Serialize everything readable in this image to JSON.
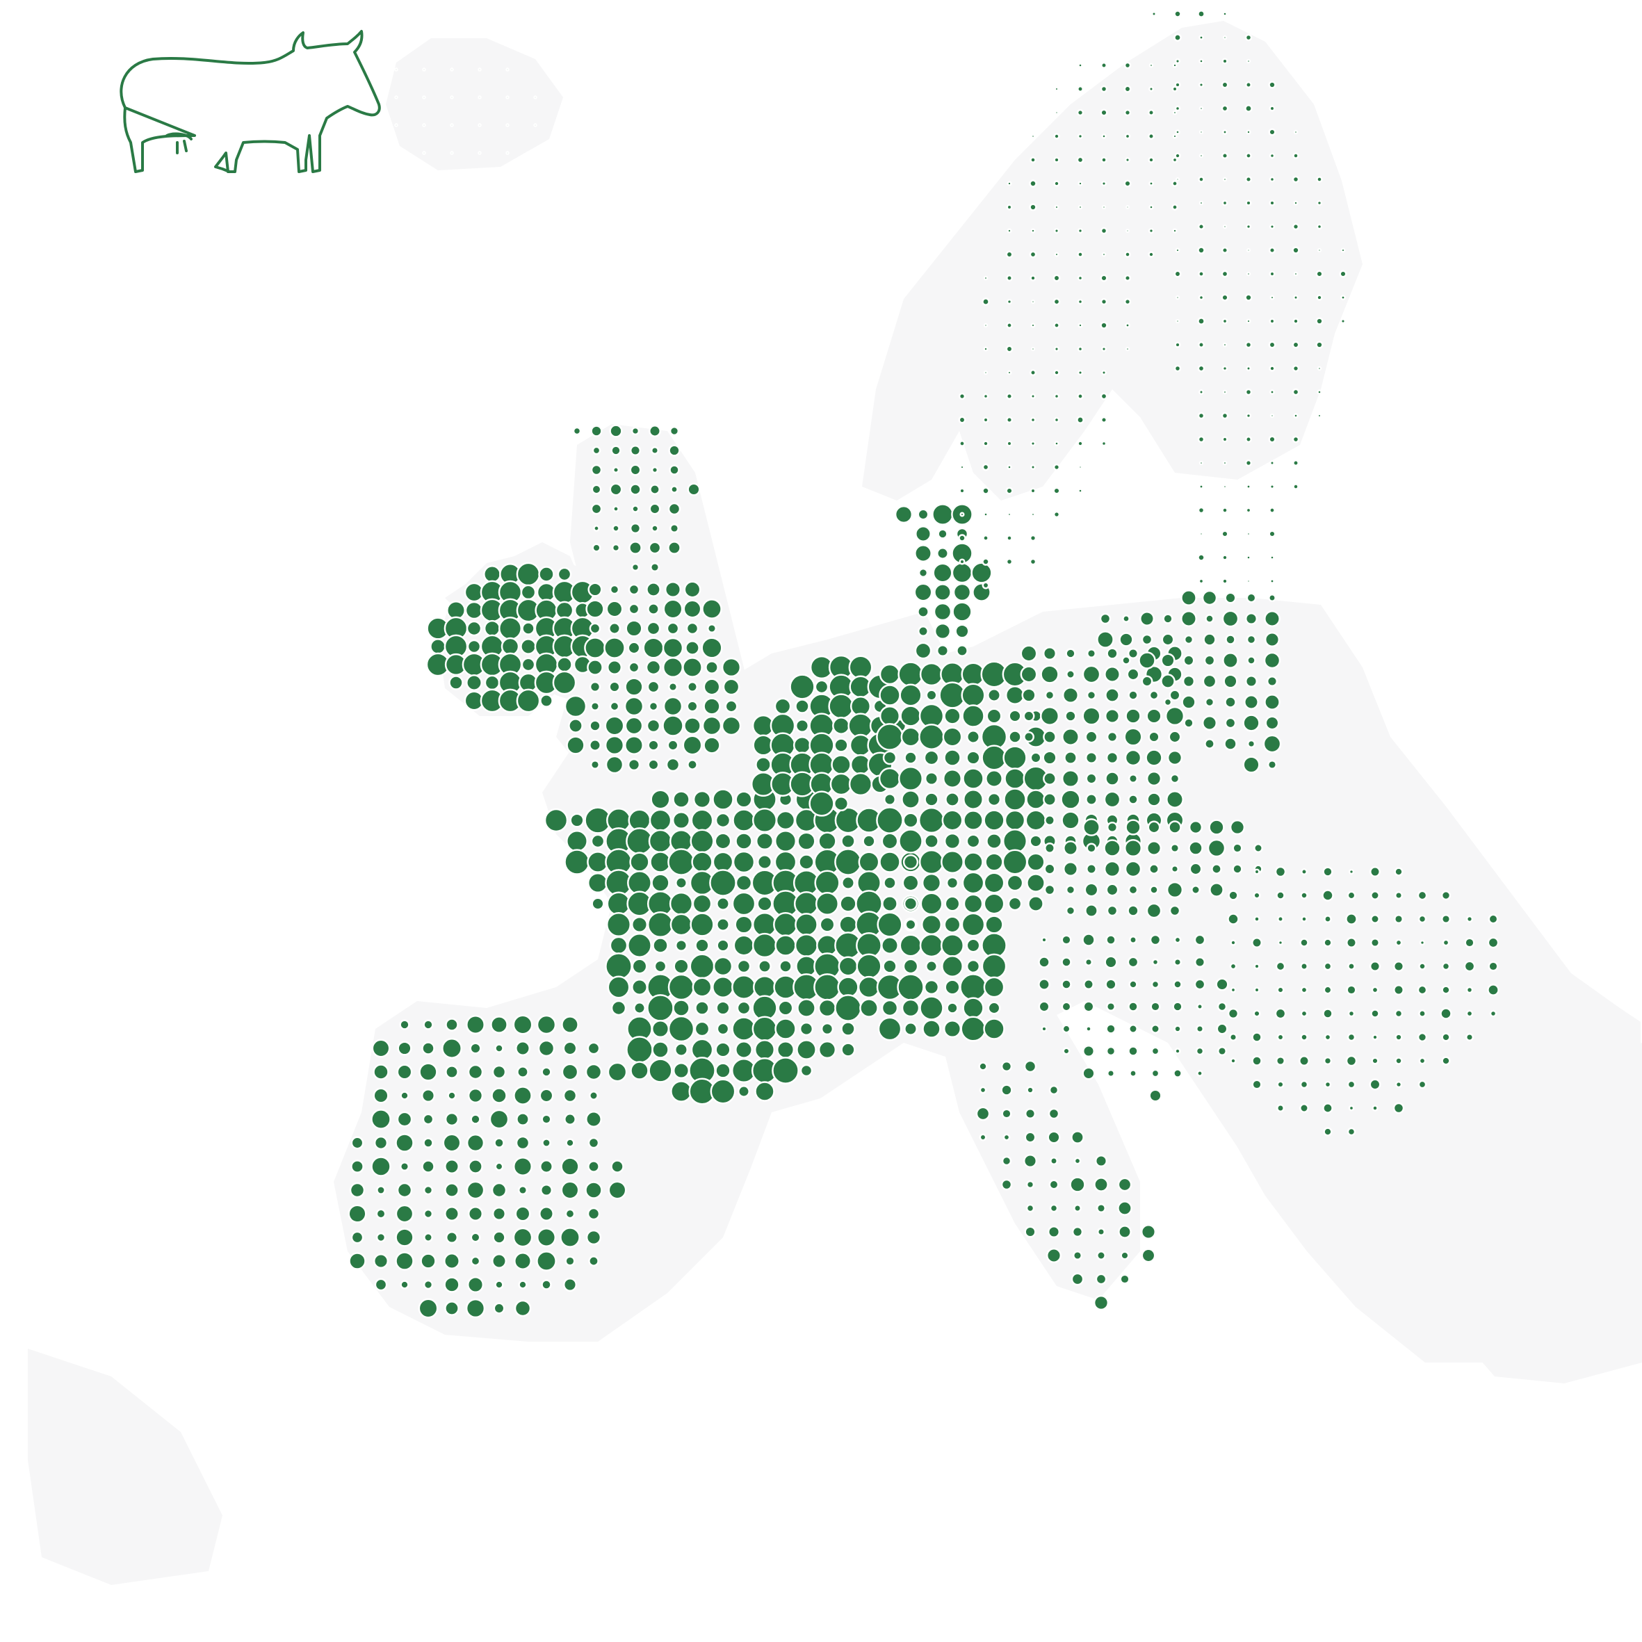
{
  "map": {
    "subject_icon": "cow-icon",
    "colors": {
      "background": "#ffffff",
      "land": "#f6f6f7",
      "dot": "#2a7a45",
      "dot_outline": "#ffffff",
      "icon_stroke": "#2a7a45"
    },
    "regions": [
      {
        "name": "ireland",
        "density": 0.95
      },
      {
        "name": "scotland",
        "density": 0.35
      },
      {
        "name": "england-wales",
        "density": 0.6
      },
      {
        "name": "france",
        "density": 0.75
      },
      {
        "name": "benelux",
        "density": 0.9
      },
      {
        "name": "germany",
        "density": 0.7
      },
      {
        "name": "denmark",
        "density": 0.6
      },
      {
        "name": "poland",
        "density": 0.5
      },
      {
        "name": "baltics",
        "density": 0.45
      },
      {
        "name": "alps",
        "density": 0.7
      },
      {
        "name": "czechia-slovakia",
        "density": 0.45
      },
      {
        "name": "hungary-balkans",
        "density": 0.3
      },
      {
        "name": "romania-bulgaria",
        "density": 0.25
      },
      {
        "name": "iberia",
        "density": 0.45
      },
      {
        "name": "italy",
        "density": 0.35
      },
      {
        "name": "scandinavia",
        "density": 0.15
      },
      {
        "name": "finland",
        "density": 0.15
      },
      {
        "name": "iceland",
        "density": 0.03
      }
    ]
  }
}
